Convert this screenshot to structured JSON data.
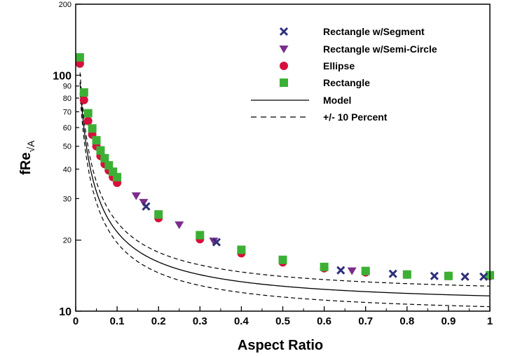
{
  "chart_data": {
    "type": "scatter",
    "xlabel": "Aspect Ratio",
    "ylabel_main": "fRe",
    "ylabel_sub": "√A",
    "xlim": [
      0,
      1
    ],
    "ylim": [
      10,
      200
    ],
    "y_scale": "log",
    "grid": false,
    "legend_position": "top-right",
    "x_ticks": [
      "0",
      "0.1",
      "0.2",
      "0.3",
      "0.4",
      "0.5",
      "0.6",
      "0.7",
      "0.8",
      "0.9",
      "1"
    ],
    "y_tick_values": [
      10,
      20,
      30,
      40,
      50,
      60,
      70,
      80,
      90,
      100,
      200
    ],
    "y_tick_labels": [
      "10",
      "20",
      "30",
      "40",
      "50",
      "60",
      "70",
      "80",
      "90",
      "100",
      "200"
    ],
    "series": [
      {
        "name": "Rectangle w/Segment",
        "marker": "x",
        "color": "#2e2f7a",
        "x": [
          0.17,
          0.34,
          0.64,
          0.766,
          0.866,
          0.94,
          0.985
        ],
        "y": [
          27.8,
          19.6,
          14.9,
          14.4,
          14.1,
          14.0,
          14.0
        ]
      },
      {
        "name": "Rectangle w/Semi-Circle",
        "marker": "triangle-down",
        "color": "#7a2e8c",
        "x": [
          0.146,
          0.164,
          0.25,
          0.333,
          0.667
        ],
        "y": [
          30.8,
          28.9,
          23.2,
          19.8,
          14.8
        ]
      },
      {
        "name": "Ellipse",
        "marker": "circle",
        "color": "#d6103c",
        "x": [
          0.01,
          0.02,
          0.03,
          0.04,
          0.05,
          0.06,
          0.07,
          0.08,
          0.09,
          0.1,
          0.2,
          0.3,
          0.4,
          0.5,
          0.6,
          0.7,
          0.8,
          0.9,
          1.0
        ],
        "y": [
          112,
          78.5,
          64,
          56,
          50,
          45.5,
          42,
          39.5,
          37,
          35,
          24.8,
          20.2,
          17.6,
          16.1,
          15.2,
          14.6,
          14.3,
          14.1,
          14.1
        ]
      },
      {
        "name": "Rectangle",
        "marker": "square",
        "color": "#3cb034",
        "x": [
          0.01,
          0.02,
          0.03,
          0.04,
          0.05,
          0.06,
          0.07,
          0.08,
          0.09,
          0.1,
          0.2,
          0.3,
          0.4,
          0.5,
          0.6,
          0.7,
          0.8,
          0.9,
          1.0
        ],
        "y": [
          119,
          84.5,
          69,
          59.5,
          53,
          48,
          44.5,
          41.5,
          39,
          37,
          25.7,
          21,
          18.2,
          16.5,
          15.4,
          14.8,
          14.3,
          14.1,
          14.2
        ]
      }
    ],
    "model": {
      "name": "Model",
      "line_style": "solid",
      "color": "#000000"
    },
    "band": {
      "name": "+/- 10 Percent",
      "line_style": "dashed",
      "percent": 10,
      "color": "#000000"
    }
  }
}
